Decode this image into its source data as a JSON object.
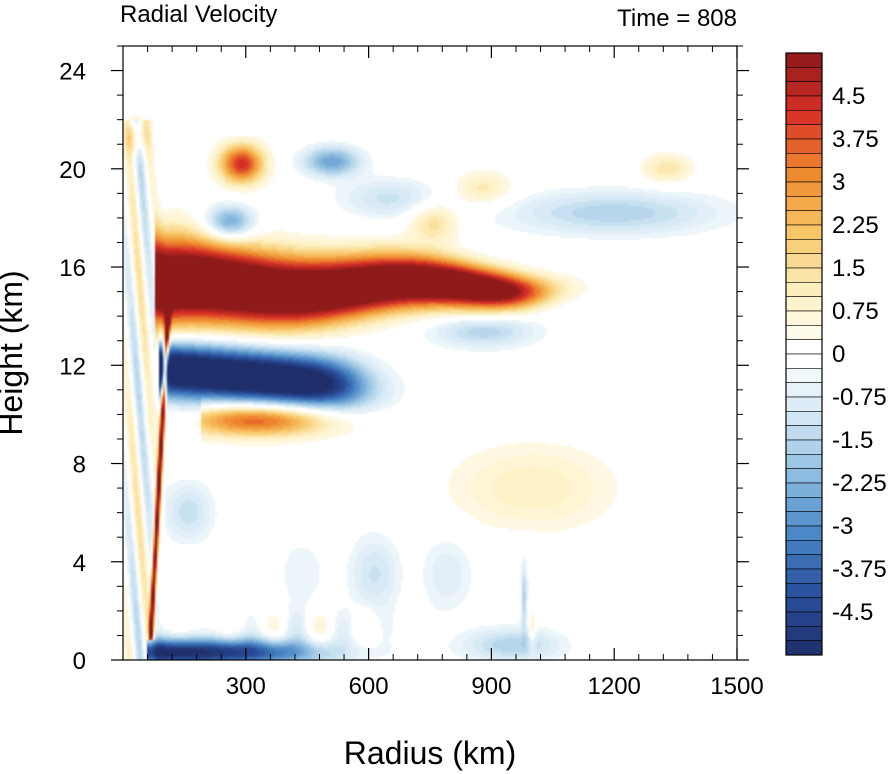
{
  "chart_data": {
    "type": "heatmap",
    "title": "Radial Velocity",
    "subtitle": "Time = 808",
    "xlabel": "Radius (km)",
    "ylabel": "Height (km)",
    "xlim": [
      0,
      1500
    ],
    "ylim": [
      0,
      25
    ],
    "x_ticks": [
      300,
      600,
      900,
      1200,
      1500
    ],
    "y_ticks": [
      0,
      4,
      8,
      12,
      16,
      20,
      24
    ],
    "colorbar": {
      "min": -5.25,
      "max": 5.25,
      "step": 0.25,
      "tick_labels": [
        "4.5",
        "3.75",
        "3",
        "2.25",
        "1.5",
        "0.75",
        "0",
        "-0.75",
        "-1.5",
        "-2.25",
        "-3",
        "-3.75",
        "-4.5"
      ],
      "tick_values": [
        4.5,
        3.75,
        3,
        2.25,
        1.5,
        0.75,
        0,
        -0.75,
        -1.5,
        -2.25,
        -3,
        -3.75,
        -4.5
      ],
      "palette": [
        "#1f2f6b",
        "#2a4f9c",
        "#4a86c6",
        "#8ebde0",
        "#d6e9f5",
        "#ffffff",
        "#fdf1c4",
        "#f8c768",
        "#ef8a2e",
        "#d73027",
        "#8e1a1a"
      ]
    },
    "features": [
      {
        "label": "outflow jet",
        "sign": "positive",
        "r_range": [
          75,
          1080
        ],
        "z_peak": 15.2,
        "peak_value": 5.25
      },
      {
        "label": "mid-level inflow",
        "sign": "negative",
        "r_range": [
          100,
          650
        ],
        "z_peak": 11.7,
        "peak_value": -5.25
      },
      {
        "label": "mid-level outflow",
        "sign": "positive",
        "r_range": [
          200,
          700
        ],
        "z_peak": 9.8,
        "peak_value": 3.8
      },
      {
        "label": "upper outflow",
        "sign": "positive",
        "r_range": [
          250,
          370
        ],
        "z_peak": 20.2,
        "peak_value": 4.3
      },
      {
        "label": "upper inflow",
        "sign": "negative",
        "r_range": [
          150,
          1450
        ],
        "z_peak": 18.0,
        "peak_value": -2.8
      },
      {
        "label": "boundary layer inflow",
        "sign": "negative",
        "r_range": [
          60,
          1000
        ],
        "z_peak": 0.4,
        "peak_value": -5.0
      },
      {
        "label": "eyewall updraft outflow",
        "sign": "positive",
        "r_range": [
          60,
          110
        ],
        "z_peak": 5.0,
        "peak_value": 5.25
      },
      {
        "label": "broad weak outflow",
        "sign": "positive",
        "r_range": [
          750,
          1300
        ],
        "z_peak": 7.0,
        "peak_value": 1.1
      }
    ]
  }
}
